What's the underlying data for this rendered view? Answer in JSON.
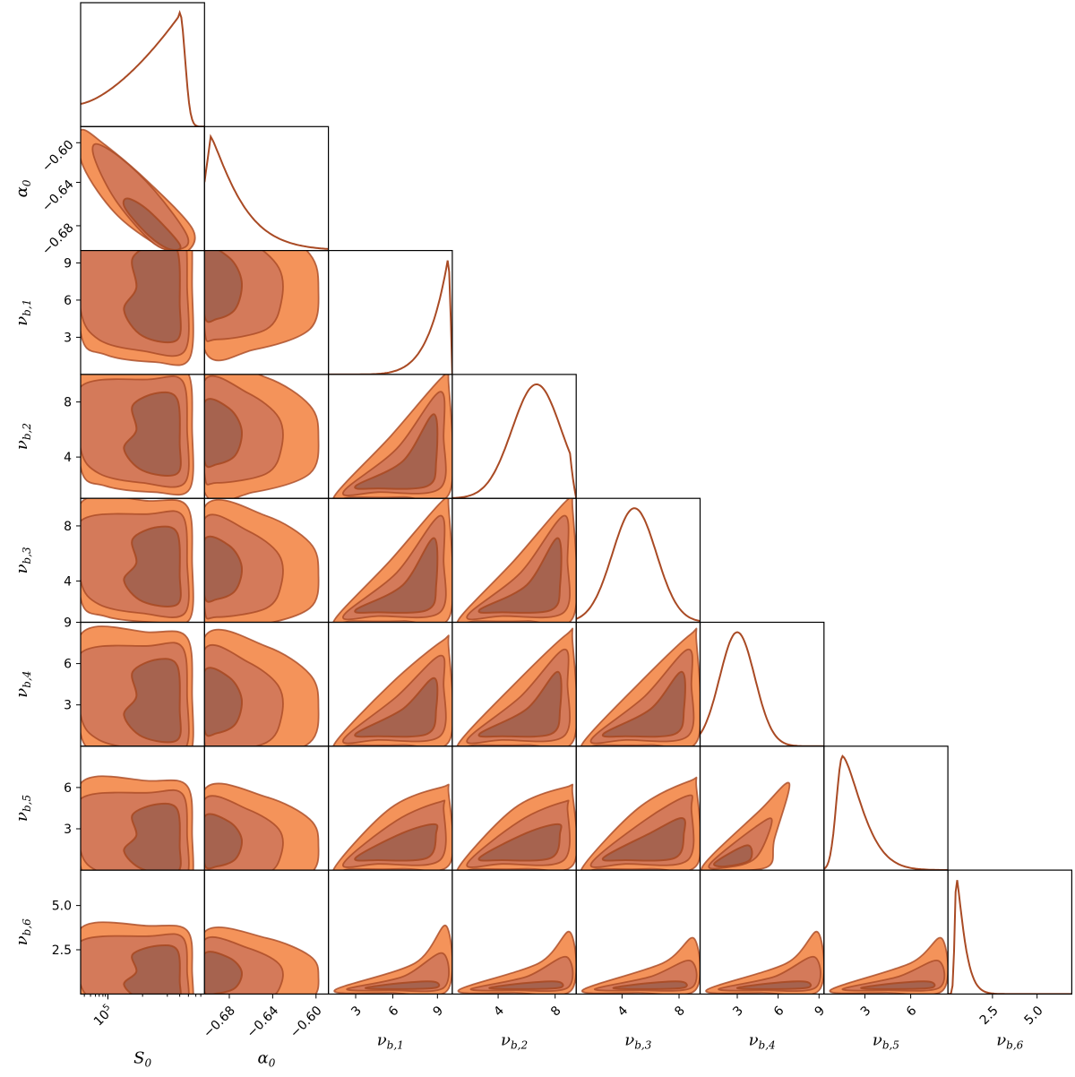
{
  "chart_data": {
    "type": "corner",
    "colors": {
      "fill_outer": "#f4935a",
      "fill_mid": "#d47a5a",
      "fill_inner": "#a6634f",
      "line": "#a94a24"
    },
    "levels": [
      "1-sigma",
      "2-sigma",
      "3-sigma"
    ],
    "params": [
      {
        "name": "S0",
        "label": "S",
        "sub": "0",
        "scale": "log",
        "ticks_x": [
          {
            "v": 100000,
            "t": "10",
            "sup": "5"
          }
        ],
        "ticks_y": []
      },
      {
        "name": "alpha0",
        "label": "α",
        "sub": "0",
        "range": [
          -0.705,
          -0.595
        ],
        "ticks_x": [
          {
            "v": -0.68,
            "t": "−0.68"
          },
          {
            "v": -0.64,
            "t": "−0.64"
          },
          {
            "v": -0.6,
            "t": "−0.60"
          }
        ],
        "ticks_y": [
          {
            "v": -0.6,
            "t": "−0.60"
          },
          {
            "v": -0.64,
            "t": "−0.64"
          },
          {
            "v": -0.68,
            "t": "−0.68"
          }
        ]
      },
      {
        "name": "nu_b1",
        "label": "ν",
        "sub": "b,1",
        "range": [
          0,
          10
        ],
        "ticks_x": [
          {
            "v": 3,
            "t": "3"
          },
          {
            "v": 6,
            "t": "6"
          },
          {
            "v": 9,
            "t": "9"
          }
        ],
        "ticks_y": [
          {
            "v": 3,
            "t": "3"
          },
          {
            "v": 6,
            "t": "6"
          },
          {
            "v": 9,
            "t": "9"
          }
        ]
      },
      {
        "name": "nu_b2",
        "label": "ν",
        "sub": "b,2",
        "range": [
          1,
          10
        ],
        "ticks_x": [
          {
            "v": 4,
            "t": "4"
          },
          {
            "v": 8,
            "t": "8"
          }
        ],
        "ticks_y": [
          {
            "v": 4,
            "t": "4"
          },
          {
            "v": 8,
            "t": "8"
          }
        ]
      },
      {
        "name": "nu_b3",
        "label": "ν",
        "sub": "b,3",
        "range": [
          1,
          10
        ],
        "ticks_x": [
          {
            "v": 4,
            "t": "4"
          },
          {
            "v": 8,
            "t": "8"
          }
        ],
        "ticks_y": [
          {
            "v": 4,
            "t": "4"
          },
          {
            "v": 8,
            "t": "8"
          }
        ]
      },
      {
        "name": "nu_b4",
        "label": "ν",
        "sub": "b,4",
        "range": [
          0,
          9
        ],
        "ticks_x": [
          {
            "v": 3,
            "t": "3"
          },
          {
            "v": 6,
            "t": "6"
          },
          {
            "v": 9,
            "t": "9"
          }
        ],
        "ticks_y": [
          {
            "v": 3,
            "t": "3"
          },
          {
            "v": 6,
            "t": "6"
          },
          {
            "v": 9,
            "t": "9"
          }
        ]
      },
      {
        "name": "nu_b5",
        "label": "ν",
        "sub": "b,5",
        "range": [
          0,
          9
        ],
        "ticks_x": [
          {
            "v": 3,
            "t": "3"
          },
          {
            "v": 6,
            "t": "6"
          }
        ],
        "ticks_y": [
          {
            "v": 3,
            "t": "3"
          },
          {
            "v": 6,
            "t": "6"
          }
        ]
      },
      {
        "name": "nu_b6",
        "label": "ν",
        "sub": "b,6",
        "range": [
          0,
          7
        ],
        "ticks_x": [
          {
            "v": 2.5,
            "t": "2.5"
          },
          {
            "v": 5.0,
            "t": "5.0"
          }
        ],
        "ticks_y": [
          {
            "v": 2.5,
            "t": "2.5"
          },
          {
            "v": 5.0,
            "t": "5.0"
          }
        ]
      }
    ],
    "marginals": [
      {
        "param": "S0",
        "shape": "left-skewed, sharp cutoff",
        "peak": 0.8
      },
      {
        "param": "alpha0",
        "shape": "peaked at lower edge, long tail",
        "peak": 0.02
      },
      {
        "param": "nu_b1",
        "shape": "rising to upper edge",
        "peak": 0.95
      },
      {
        "param": "nu_b2",
        "shape": "broad peak",
        "peak": 7.0
      },
      {
        "param": "nu_b3",
        "shape": "broad peak",
        "peak": 4.5
      },
      {
        "param": "nu_b4",
        "shape": "peak",
        "peak": 3.0
      },
      {
        "param": "nu_b5",
        "shape": "narrow peak",
        "peak": 1.8
      },
      {
        "param": "nu_b6",
        "shape": "very narrow peak",
        "peak": 0.5
      }
    ]
  }
}
